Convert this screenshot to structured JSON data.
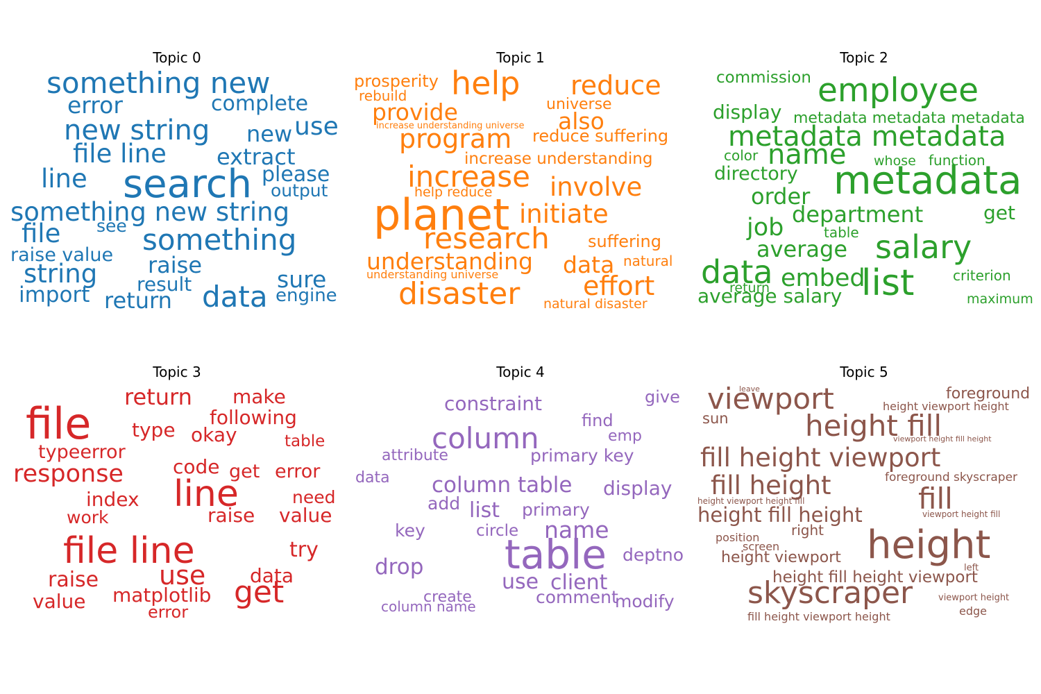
{
  "topics": [
    {
      "title": "Topic 0",
      "color": "#1f77b4",
      "words": [
        "something new",
        "error",
        "complete",
        "new string",
        "new",
        "use",
        "file line",
        "extract",
        "line",
        "search",
        "please",
        "output",
        "something new string",
        "file",
        "see",
        "something",
        "raise value",
        "raise",
        "string",
        "result",
        "sure",
        "import",
        "return",
        "data",
        "engine"
      ]
    },
    {
      "title": "Topic 1",
      "color": "#ff7f0e",
      "words": [
        "prosperity",
        "help",
        "reduce",
        "rebuild",
        "provide",
        "universe",
        "also",
        "increase understanding universe",
        "program",
        "reduce suffering",
        "increase understanding",
        "increase",
        "involve",
        "help reduce",
        "planet",
        "initiate",
        "research",
        "suffering",
        "understanding",
        "data",
        "natural",
        "understanding universe",
        "effort",
        "disaster",
        "natural disaster"
      ]
    },
    {
      "title": "Topic 2",
      "color": "#2ca02c",
      "words": [
        "commission",
        "employee",
        "display",
        "metadata metadata metadata",
        "metadata metadata",
        "name",
        "color",
        "whose",
        "function",
        "directory",
        "metadata",
        "order",
        "department",
        "get",
        "job",
        "table",
        "average",
        "salary",
        "data",
        "embed",
        "list",
        "criterion",
        "return",
        "average salary",
        "maximum"
      ]
    },
    {
      "title": "Topic 3",
      "color": "#d62728",
      "words": [
        "return",
        "make",
        "file",
        "following",
        "type",
        "okay",
        "table",
        "typeerror",
        "response",
        "code",
        "get",
        "error",
        "line",
        "index",
        "need",
        "work",
        "raise",
        "value",
        "file line",
        "try",
        "use",
        "data",
        "raise",
        "get",
        "value",
        "matplotlib",
        "error"
      ]
    },
    {
      "title": "Topic 4",
      "color": "#9467bd",
      "words": [
        "constraint",
        "give",
        "find",
        "column",
        "emp",
        "attribute",
        "primary key",
        "data",
        "column table",
        "display",
        "add",
        "list",
        "primary",
        "key",
        "circle",
        "name",
        "table",
        "deptno",
        "drop",
        "use",
        "client",
        "comment",
        "create",
        "modify",
        "column name"
      ]
    },
    {
      "title": "Topic 5",
      "color": "#8c564b",
      "words": [
        "leave",
        "viewport",
        "foreground",
        "height viewport height",
        "sun",
        "height fill",
        "viewport height fill height",
        "fill height viewport",
        "fill height",
        "foreground skyscraper",
        "fill",
        "height viewport height fill",
        "height fill height",
        "viewport height fill",
        "right",
        "position",
        "screen",
        "height",
        "height viewport",
        "left",
        "height fill height viewport",
        "skyscraper",
        "viewport height",
        "edge",
        "fill height viewport height"
      ]
    }
  ]
}
